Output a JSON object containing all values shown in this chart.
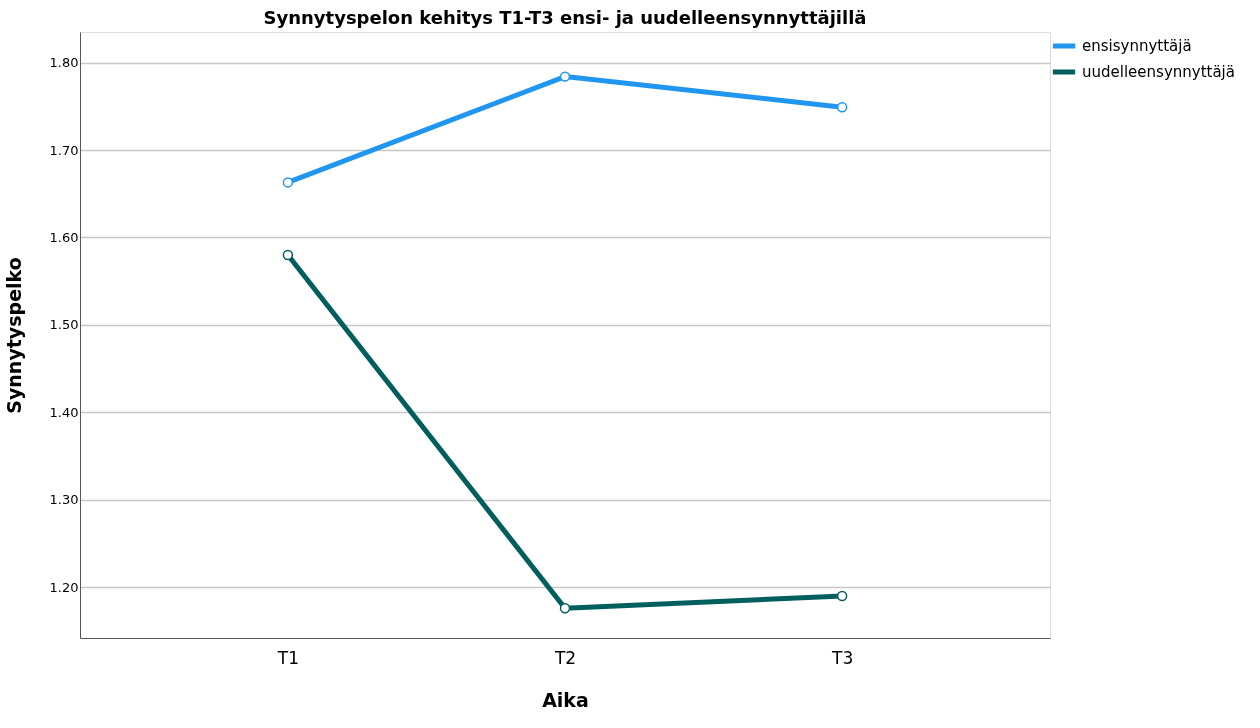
{
  "chart_data": {
    "type": "line",
    "title": "Synnytyspelon kehitys T1-T3 ensi- ja uudelleensynnyttäjillä",
    "xlabel": "Aika",
    "ylabel": "Synnytyspelko",
    "categories": [
      "T1",
      "T2",
      "T3"
    ],
    "series": [
      {
        "name": "ensisynnyttäjä",
        "color": "#2196f0",
        "values": [
          1.663,
          1.784,
          1.749
        ]
      },
      {
        "name": "uudelleensynnyttäjä",
        "color": "#005e5e",
        "values": [
          1.58,
          1.176,
          1.19
        ]
      }
    ],
    "ylim": [
      1.142,
      1.835
    ],
    "yticks": [
      {
        "value": 1.2,
        "label": "1.20"
      },
      {
        "value": 1.3,
        "label": "1.30"
      },
      {
        "value": 1.4,
        "label": "1.40"
      },
      {
        "value": 1.5,
        "label": "1.50"
      },
      {
        "value": 1.6,
        "label": "1.60"
      },
      {
        "value": 1.7,
        "label": "1.70"
      },
      {
        "value": 1.8,
        "label": "1.80"
      }
    ],
    "grid": "y",
    "legend": "top right",
    "marker": "circle",
    "line_style": "solid"
  }
}
